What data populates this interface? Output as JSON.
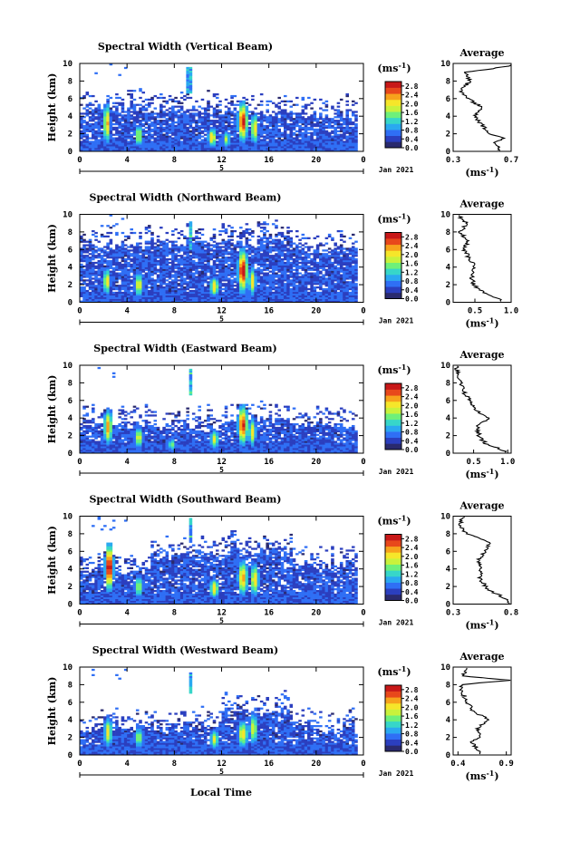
{
  "colors": {
    "palette": [
      "#2a2a6e",
      "#2b3fbf",
      "#2f6ff5",
      "#2aa9f0",
      "#37d6c9",
      "#6ef07a",
      "#c9f23c",
      "#f6e62a",
      "#f7a21c",
      "#e8481b",
      "#c81818"
    ],
    "axis": "#000000",
    "trace": "#000000"
  },
  "xlabel": "Local Time",
  "chart_data": [
    {
      "type": "heatmap",
      "title": "Spectral Width (Vertical Beam)",
      "ylabel": "Height (km)",
      "xlim": [
        0,
        24
      ],
      "ylim": [
        0,
        10
      ],
      "xticks": [
        "0",
        "4",
        "8",
        "12",
        "16",
        "20",
        "0"
      ],
      "yticks": [
        "0",
        "2",
        "4",
        "6",
        "8",
        "10"
      ],
      "date_tick": "5",
      "date_label": "Jan 2021",
      "colorbar": {
        "unit": "(ms-1)",
        "labels": [
          "0.0",
          "0.4",
          "0.8",
          "1.2",
          "1.6",
          "2.0",
          "2.4",
          "2.8"
        ],
        "range": [
          0,
          3.0
        ]
      },
      "average": {
        "title": "Average",
        "xlabel": "(ms-1)",
        "xlim": [
          0.3,
          0.7
        ],
        "xticks": [
          "0.3",
          "0.7"
        ],
        "ylim": [
          0,
          10
        ],
        "height_km": [
          0.3,
          1.0,
          1.5,
          2.0,
          3.0,
          4.0,
          5.0,
          6.0,
          7.0,
          8.0,
          9.0,
          9.7
        ],
        "values": [
          0.62,
          0.58,
          0.66,
          0.55,
          0.5,
          0.45,
          0.5,
          0.4,
          0.35,
          0.42,
          0.38,
          0.7
        ]
      },
      "blobs": [
        {
          "t": 2.3,
          "h": 3.2,
          "dt": 0.25,
          "dh": 1.8,
          "a": 2.0
        },
        {
          "t": 5.0,
          "h": 1.8,
          "dt": 0.25,
          "dh": 1.0,
          "a": 1.6
        },
        {
          "t": 11.2,
          "h": 1.6,
          "dt": 0.3,
          "dh": 0.9,
          "a": 1.8
        },
        {
          "t": 12.4,
          "h": 1.4,
          "dt": 0.25,
          "dh": 0.8,
          "a": 1.4
        },
        {
          "t": 13.8,
          "h": 3.4,
          "dt": 0.35,
          "dh": 1.8,
          "a": 2.6
        },
        {
          "t": 14.8,
          "h": 2.6,
          "dt": 0.25,
          "dh": 1.4,
          "a": 1.8
        }
      ],
      "top_fn": [
        5.0,
        4.8,
        4.5,
        4.2
      ],
      "spire": {
        "t": 9.3,
        "h0": 6.5,
        "h1": 9.6
      }
    },
    {
      "type": "heatmap",
      "title": "Spectral Width (Northward Beam)",
      "ylabel": "Height (km)",
      "xlim": [
        0,
        24
      ],
      "ylim": [
        0,
        10
      ],
      "xticks": [
        "0",
        "4",
        "8",
        "12",
        "16",
        "20",
        "0"
      ],
      "yticks": [
        "0",
        "2",
        "4",
        "6",
        "8",
        "10"
      ],
      "date_tick": "5",
      "date_label": "Jan 2021",
      "colorbar": {
        "unit": "(ms-1)",
        "labels": [
          "0.0",
          "0.4",
          "0.8",
          "1.2",
          "1.6",
          "2.0",
          "2.4",
          "2.8"
        ],
        "range": [
          0,
          3.0
        ]
      },
      "average": {
        "title": "Average",
        "xlabel": "(ms-1)",
        "xlim": [
          0.2,
          1.0
        ],
        "xticks": [
          "0.5",
          "1.0"
        ],
        "ylim": [
          0,
          10
        ],
        "height_km": [
          0.3,
          1.0,
          1.5,
          2.0,
          3.0,
          4.0,
          5.0,
          6.0,
          7.0,
          8.0,
          9.0,
          9.7
        ],
        "values": [
          0.85,
          0.65,
          0.55,
          0.48,
          0.45,
          0.5,
          0.42,
          0.35,
          0.4,
          0.3,
          0.38,
          0.3
        ]
      },
      "blobs": [
        {
          "t": 2.3,
          "h": 2.4,
          "dt": 0.25,
          "dh": 1.2,
          "a": 1.8
        },
        {
          "t": 5.0,
          "h": 2.0,
          "dt": 0.3,
          "dh": 1.2,
          "a": 1.6
        },
        {
          "t": 11.4,
          "h": 1.8,
          "dt": 0.3,
          "dh": 0.9,
          "a": 1.8
        },
        {
          "t": 13.8,
          "h": 3.6,
          "dt": 0.35,
          "dh": 2.0,
          "a": 2.7
        },
        {
          "t": 14.6,
          "h": 2.4,
          "dt": 0.25,
          "dh": 1.3,
          "a": 1.8
        }
      ],
      "top_fn": [
        6.5,
        6.8,
        7.0,
        6.0
      ],
      "spire": {
        "t": 9.4,
        "h0": 6.0,
        "h1": 9.2
      }
    },
    {
      "type": "heatmap",
      "title": "Spectral Width (Eastward Beam)",
      "ylabel": "Height (km)",
      "xlim": [
        0,
        24
      ],
      "ylim": [
        0,
        10
      ],
      "xticks": [
        "0",
        "4",
        "8",
        "12",
        "16",
        "20",
        "0"
      ],
      "yticks": [
        "0",
        "2",
        "4",
        "6",
        "8",
        "10"
      ],
      "date_tick": "5",
      "date_label": "Jan 2021",
      "colorbar": {
        "unit": "(ms-1)",
        "labels": [
          "0.0",
          "0.4",
          "0.8",
          "1.2",
          "1.6",
          "2.0",
          "2.4",
          "2.8"
        ],
        "range": [
          0,
          3.0
        ]
      },
      "average": {
        "title": "Average",
        "xlabel": "(ms-1)",
        "xlim": [
          0.2,
          1.05
        ],
        "xticks": [
          "0.5",
          "1.0"
        ],
        "ylim": [
          0,
          10
        ],
        "height_km": [
          0.3,
          1.0,
          1.5,
          2.0,
          3.0,
          4.0,
          5.0,
          6.0,
          7.0,
          8.0,
          9.0,
          9.7
        ],
        "values": [
          0.95,
          0.7,
          0.62,
          0.58,
          0.55,
          0.72,
          0.5,
          0.45,
          0.35,
          0.32,
          0.28,
          0.25
        ]
      },
      "blobs": [
        {
          "t": 2.4,
          "h": 3.0,
          "dt": 0.3,
          "dh": 1.6,
          "a": 2.0
        },
        {
          "t": 5.0,
          "h": 1.8,
          "dt": 0.3,
          "dh": 1.0,
          "a": 1.6
        },
        {
          "t": 7.8,
          "h": 1.0,
          "dt": 0.25,
          "dh": 0.6,
          "a": 1.2
        },
        {
          "t": 11.4,
          "h": 1.6,
          "dt": 0.3,
          "dh": 0.8,
          "a": 1.6
        },
        {
          "t": 13.8,
          "h": 3.2,
          "dt": 0.35,
          "dh": 1.8,
          "a": 2.5
        },
        {
          "t": 14.6,
          "h": 2.4,
          "dt": 0.25,
          "dh": 1.3,
          "a": 1.7
        }
      ],
      "top_fn": [
        3.5,
        3.2,
        3.8,
        3.0
      ],
      "spire": {
        "t": 9.4,
        "h0": 6.5,
        "h1": 9.6
      }
    },
    {
      "type": "heatmap",
      "title": "Spectral Width (Southward Beam)",
      "ylabel": "Height (km)",
      "xlim": [
        0,
        24
      ],
      "ylim": [
        0,
        10
      ],
      "xticks": [
        "0",
        "4",
        "8",
        "12",
        "16",
        "20",
        "0"
      ],
      "yticks": [
        "0",
        "2",
        "4",
        "6",
        "8",
        "10"
      ],
      "date_tick": "5",
      "date_label": "Jan 2021",
      "colorbar": {
        "unit": "(ms-1)",
        "labels": [
          "0.0",
          "0.4",
          "0.8",
          "1.2",
          "1.6",
          "2.0",
          "2.4",
          "2.8"
        ],
        "range": [
          0,
          3.0
        ]
      },
      "average": {
        "title": "Average",
        "xlabel": "(ms-1)",
        "xlim": [
          0.3,
          0.8
        ],
        "xticks": [
          "0.3",
          "0.8"
        ],
        "ylim": [
          0,
          10
        ],
        "height_km": [
          0.3,
          1.0,
          1.5,
          2.0,
          3.0,
          4.0,
          5.0,
          6.0,
          7.0,
          8.0,
          9.0,
          9.7
        ],
        "values": [
          0.78,
          0.7,
          0.62,
          0.58,
          0.52,
          0.55,
          0.52,
          0.58,
          0.62,
          0.42,
          0.35,
          0.38
        ]
      },
      "blobs": [
        {
          "t": 2.5,
          "h": 4.2,
          "dt": 0.3,
          "dh": 2.2,
          "a": 2.8
        },
        {
          "t": 5.0,
          "h": 2.0,
          "dt": 0.3,
          "dh": 1.0,
          "a": 1.4
        },
        {
          "t": 11.4,
          "h": 1.8,
          "dt": 0.3,
          "dh": 0.9,
          "a": 1.8
        },
        {
          "t": 13.8,
          "h": 3.0,
          "dt": 0.35,
          "dh": 1.6,
          "a": 2.0
        },
        {
          "t": 14.8,
          "h": 2.8,
          "dt": 0.3,
          "dh": 1.5,
          "a": 1.8
        }
      ],
      "top_fn": [
        4.0,
        5.5,
        6.0,
        4.5
      ],
      "spire": {
        "t": 9.4,
        "h0": 7.0,
        "h1": 9.8
      }
    },
    {
      "type": "heatmap",
      "title": "Spectral Width (Westward Beam)",
      "ylabel": "Height (km)",
      "xlim": [
        0,
        24
      ],
      "ylim": [
        0,
        10
      ],
      "xticks": [
        "0",
        "4",
        "8",
        "12",
        "16",
        "20",
        "0"
      ],
      "yticks": [
        "0",
        "2",
        "4",
        "6",
        "8",
        "10"
      ],
      "date_tick": "5",
      "date_label": "Jan 2021",
      "colorbar": {
        "unit": "(ms-1)",
        "labels": [
          "0.0",
          "0.4",
          "0.8",
          "1.2",
          "1.6",
          "2.0",
          "2.4",
          "2.8"
        ],
        "range": [
          0,
          3.0
        ]
      },
      "average": {
        "title": "Average",
        "xlabel": "(ms-1)",
        "xlim": [
          0.35,
          0.95
        ],
        "xticks": [
          "0.4",
          "0.9"
        ],
        "ylim": [
          0,
          10
        ],
        "height_km": [
          0.3,
          1.0,
          1.5,
          2.0,
          3.0,
          4.0,
          5.0,
          6.0,
          7.0,
          8.0,
          8.5,
          9.0,
          9.7
        ],
        "values": [
          0.62,
          0.58,
          0.55,
          0.62,
          0.6,
          0.72,
          0.55,
          0.5,
          0.45,
          0.42,
          0.92,
          0.45,
          0.5
        ]
      },
      "blobs": [
        {
          "t": 2.4,
          "h": 2.6,
          "dt": 0.3,
          "dh": 1.4,
          "a": 1.6
        },
        {
          "t": 5.0,
          "h": 2.0,
          "dt": 0.3,
          "dh": 1.0,
          "a": 1.3
        },
        {
          "t": 11.4,
          "h": 1.8,
          "dt": 0.3,
          "dh": 0.9,
          "a": 1.6
        },
        {
          "t": 13.8,
          "h": 2.4,
          "dt": 0.35,
          "dh": 1.2,
          "a": 1.8
        },
        {
          "t": 14.7,
          "h": 3.0,
          "dt": 0.3,
          "dh": 1.5,
          "a": 1.5
        }
      ],
      "top_fn": [
        3.0,
        3.2,
        5.0,
        3.0
      ],
      "spire": {
        "t": 9.4,
        "h0": 7.0,
        "h1": 9.4
      }
    }
  ]
}
